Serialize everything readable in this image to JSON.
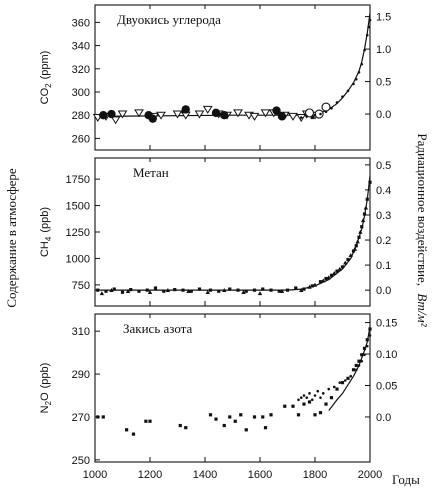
{
  "figure": {
    "left_label": "Содержание в атмосфере",
    "right_label_main": "Радиационное воздействие,",
    "right_label_unit": "Вт/м²",
    "xlabel": "Годы"
  },
  "chart_data": [
    {
      "type": "scatter",
      "title": "Двуокись углерода",
      "ylabel_main": "CO",
      "ylabel_sub": "2",
      "ylabel_unit": "(ppm)",
      "xlim": [
        1000,
        2000
      ],
      "ylim": [
        250,
        375
      ],
      "yticks": [
        260,
        280,
        300,
        320,
        340,
        360
      ],
      "right_axis_ticks": [
        {
          "value": 0.0,
          "label": "0.0"
        },
        {
          "value": 0.5,
          "label": "0.5"
        },
        {
          "value": 1.0,
          "label": "1.0"
        },
        {
          "value": 1.5,
          "label": "1.5"
        }
      ],
      "right_axis_map": {
        "v0": 0.0,
        "y0": 281,
        "v1": 1.5,
        "y1": 365
      },
      "series": [
        {
          "marker": "triangle-open",
          "points": [
            [
              1010,
              278
            ],
            [
              1040,
              279
            ],
            [
              1075,
              276
            ],
            [
              1100,
              281
            ],
            [
              1160,
              282
            ],
            [
              1215,
              279
            ],
            [
              1240,
              280
            ],
            [
              1300,
              281
            ],
            [
              1330,
              280
            ],
            [
              1380,
              281
            ],
            [
              1410,
              285
            ],
            [
              1450,
              281
            ],
            [
              1480,
              280
            ],
            [
              1520,
              282
            ],
            [
              1560,
              280
            ],
            [
              1580,
              279
            ],
            [
              1620,
              282
            ],
            [
              1650,
              282
            ],
            [
              1690,
              280
            ],
            [
              1720,
              279
            ],
            [
              1750,
              278
            ],
            [
              1770,
              281
            ],
            [
              1800,
              280
            ]
          ]
        },
        {
          "marker": "circle-filled",
          "points": [
            [
              1030,
              280
            ],
            [
              1060,
              281
            ],
            [
              1195,
              280
            ],
            [
              1210,
              277
            ],
            [
              1330,
              285
            ],
            [
              1440,
              282
            ],
            [
              1470,
              280
            ],
            [
              1660,
              284
            ],
            [
              1680,
              279
            ]
          ]
        },
        {
          "marker": "square-filled",
          "points": [
            [
              1200,
              278
            ],
            [
              1320,
              283
            ],
            [
              1455,
              281
            ],
            [
              1670,
              281
            ],
            [
              1790,
              278
            ]
          ]
        },
        {
          "marker": "circle-open",
          "points": [
            [
              1780,
              282
            ],
            [
              1815,
              281
            ],
            [
              1840,
              287
            ]
          ]
        },
        {
          "marker": "dot",
          "points": [
            [
              1750,
              278
            ],
            [
              1770,
              279
            ],
            [
              1800,
              280
            ],
            [
              1820,
              281
            ],
            [
              1840,
              283
            ],
            [
              1860,
              286
            ],
            [
              1880,
              291
            ],
            [
              1900,
              296
            ],
            [
              1920,
              301
            ],
            [
              1940,
              307
            ],
            [
              1950,
              311
            ],
            [
              1960,
              317
            ],
            [
              1970,
              324
            ],
            [
              1980,
              336
            ],
            [
              1990,
              349
            ],
            [
              1995,
              356
            ],
            [
              2000,
              362
            ]
          ]
        }
      ],
      "curve": [
        [
          1000,
          279
        ],
        [
          1500,
          280
        ],
        [
          1700,
          280
        ],
        [
          1780,
          280
        ],
        [
          1820,
          282
        ],
        [
          1850,
          285
        ],
        [
          1880,
          290
        ],
        [
          1900,
          295
        ],
        [
          1920,
          301
        ],
        [
          1940,
          308
        ],
        [
          1960,
          318
        ],
        [
          1970,
          326
        ],
        [
          1980,
          337
        ],
        [
          1990,
          351
        ],
        [
          2000,
          368
        ]
      ]
    },
    {
      "type": "scatter",
      "title": "Метан",
      "ylabel_main": "CH",
      "ylabel_sub": "4",
      "ylabel_unit": "(ppb)",
      "xlim": [
        1000,
        2000
      ],
      "ylim": [
        550,
        1950
      ],
      "yticks": [
        750,
        1000,
        1250,
        1500,
        1750
      ],
      "right_axis_ticks": [
        {
          "value": 0.0,
          "label": "0.0"
        },
        {
          "value": 0.1,
          "label": "0.1"
        },
        {
          "value": 0.2,
          "label": "0.2"
        },
        {
          "value": 0.3,
          "label": "0.3"
        },
        {
          "value": 0.4,
          "label": "0.4"
        },
        {
          "value": 0.5,
          "label": "0.5"
        }
      ],
      "right_axis_map": {
        "v0": 0.0,
        "y0": 700,
        "v1": 0.5,
        "y1": 1885
      },
      "series": [
        {
          "marker": "square-filled",
          "points": [
            [
              1010,
              700
            ],
            [
              1040,
              690
            ],
            [
              1070,
              710
            ],
            [
              1100,
              680
            ],
            [
              1130,
              705
            ],
            [
              1160,
              690
            ],
            [
              1190,
              700
            ],
            [
              1220,
              720
            ],
            [
              1250,
              690
            ],
            [
              1290,
              705
            ],
            [
              1320,
              700
            ],
            [
              1350,
              690
            ],
            [
              1380,
              710
            ],
            [
              1420,
              700
            ],
            [
              1450,
              690
            ],
            [
              1490,
              710
            ],
            [
              1520,
              700
            ],
            [
              1550,
              690
            ],
            [
              1580,
              700
            ],
            [
              1610,
              710
            ],
            [
              1640,
              700
            ],
            [
              1670,
              690
            ],
            [
              1700,
              700
            ],
            [
              1730,
              720
            ],
            [
              1760,
              710
            ],
            [
              1790,
              740
            ],
            [
              1820,
              780
            ],
            [
              1840,
              810
            ],
            [
              1860,
              840
            ],
            [
              1880,
              880
            ],
            [
              1900,
              920
            ],
            [
              1920,
              990
            ],
            [
              1940,
              1070
            ],
            [
              1950,
              1120
            ],
            [
              1960,
              1200
            ],
            [
              1970,
              1300
            ],
            [
              1980,
              1420
            ],
            [
              1990,
              1560
            ],
            [
              2000,
              1720
            ]
          ]
        },
        {
          "marker": "triangle-filled",
          "points": [
            [
              1025,
              670
            ],
            [
              1060,
              700
            ],
            [
              1120,
              690
            ],
            [
              1200,
              680
            ],
            [
              1265,
              700
            ],
            [
              1340,
              690
            ],
            [
              1410,
              680
            ],
            [
              1470,
              700
            ],
            [
              1540,
              680
            ],
            [
              1600,
              670
            ],
            [
              1680,
              690
            ],
            [
              1750,
              700
            ],
            [
              1780,
              730
            ],
            [
              1800,
              750
            ],
            [
              1830,
              790
            ],
            [
              1850,
              820
            ],
            [
              1870,
              860
            ],
            [
              1890,
              900
            ],
            [
              1910,
              960
            ],
            [
              1930,
              1030
            ],
            [
              1945,
              1090
            ],
            [
              1955,
              1160
            ],
            [
              1965,
              1250
            ],
            [
              1975,
              1360
            ],
            [
              1985,
              1480
            ]
          ]
        }
      ],
      "curve": [
        [
          1000,
          700
        ],
        [
          1700,
          700
        ],
        [
          1750,
          710
        ],
        [
          1800,
          740
        ],
        [
          1850,
          800
        ],
        [
          1900,
          900
        ],
        [
          1930,
          1000
        ],
        [
          1950,
          1120
        ],
        [
          1970,
          1280
        ],
        [
          1980,
          1400
        ],
        [
          1990,
          1560
        ],
        [
          2000,
          1780
        ]
      ]
    },
    {
      "type": "scatter",
      "title": "Закись азота",
      "ylabel_main": "N",
      "ylabel_sub": "2",
      "ylabel_tail": "O",
      "ylabel_unit": "(ppb)",
      "xlim": [
        1000,
        2000
      ],
      "ylim": [
        249,
        318
      ],
      "yticks": [
        250,
        270,
        290,
        310
      ],
      "right_axis_ticks": [
        {
          "value": 0.0,
          "label": "0.0"
        },
        {
          "value": 0.05,
          "label": "0.05"
        },
        {
          "value": 0.1,
          "label": "0.10"
        },
        {
          "value": 0.15,
          "label": "0.15"
        }
      ],
      "right_axis_map": {
        "v0": 0.0,
        "y0": 270,
        "v1": 0.15,
        "y1": 314
      },
      "series": [
        {
          "marker": "square-filled",
          "points": [
            [
              1010,
              270
            ],
            [
              1030,
              270
            ],
            [
              1115,
              264
            ],
            [
              1140,
              262
            ],
            [
              1185,
              268
            ],
            [
              1200,
              268
            ],
            [
              1310,
              266
            ],
            [
              1330,
              265
            ],
            [
              1420,
              271
            ],
            [
              1440,
              269
            ],
            [
              1470,
              266
            ],
            [
              1490,
              270
            ],
            [
              1510,
              268
            ],
            [
              1530,
              271
            ],
            [
              1550,
              264
            ],
            [
              1580,
              270
            ],
            [
              1610,
              270
            ],
            [
              1620,
              265
            ],
            [
              1640,
              271
            ],
            [
              1690,
              275
            ],
            [
              1720,
              275
            ],
            [
              1740,
              271
            ],
            [
              1760,
              276
            ],
            [
              1780,
              277
            ],
            [
              1800,
              271
            ],
            [
              1820,
              272
            ],
            [
              1840,
              276
            ],
            [
              1860,
              279
            ],
            [
              1880,
              283
            ],
            [
              1900,
              286
            ],
            [
              1920,
              288
            ],
            [
              1940,
              292
            ],
            [
              1950,
              294
            ],
            [
              1960,
              296
            ],
            [
              1970,
              299
            ],
            [
              1980,
              302
            ],
            [
              1990,
              306
            ],
            [
              2000,
              311
            ]
          ]
        },
        {
          "marker": "dot",
          "points": [
            [
              1740,
              278
            ],
            [
              1750,
              279
            ],
            [
              1760,
              280
            ],
            [
              1770,
              279
            ],
            [
              1780,
              281
            ],
            [
              1790,
              278
            ],
            [
              1800,
              280
            ],
            [
              1810,
              282
            ],
            [
              1820,
              279
            ],
            [
              1830,
              281
            ],
            [
              1850,
              283
            ],
            [
              1870,
              284
            ],
            [
              1890,
              286
            ],
            [
              1910,
              287
            ],
            [
              1930,
              289
            ],
            [
              1950,
              292
            ],
            [
              1960,
              294
            ],
            [
              1970,
              296
            ],
            [
              1980,
              299
            ],
            [
              1990,
              303
            ],
            [
              2000,
              308
            ]
          ]
        }
      ],
      "curve": [
        [
          1850,
          273
        ],
        [
          1880,
          278
        ],
        [
          1900,
          281
        ],
        [
          1920,
          285
        ],
        [
          1940,
          289
        ],
        [
          1960,
          294
        ],
        [
          1980,
          301
        ],
        [
          1990,
          305
        ],
        [
          2000,
          312
        ]
      ]
    }
  ],
  "x_ticks": [
    1000,
    1200,
    1400,
    1600,
    1800,
    2000
  ]
}
